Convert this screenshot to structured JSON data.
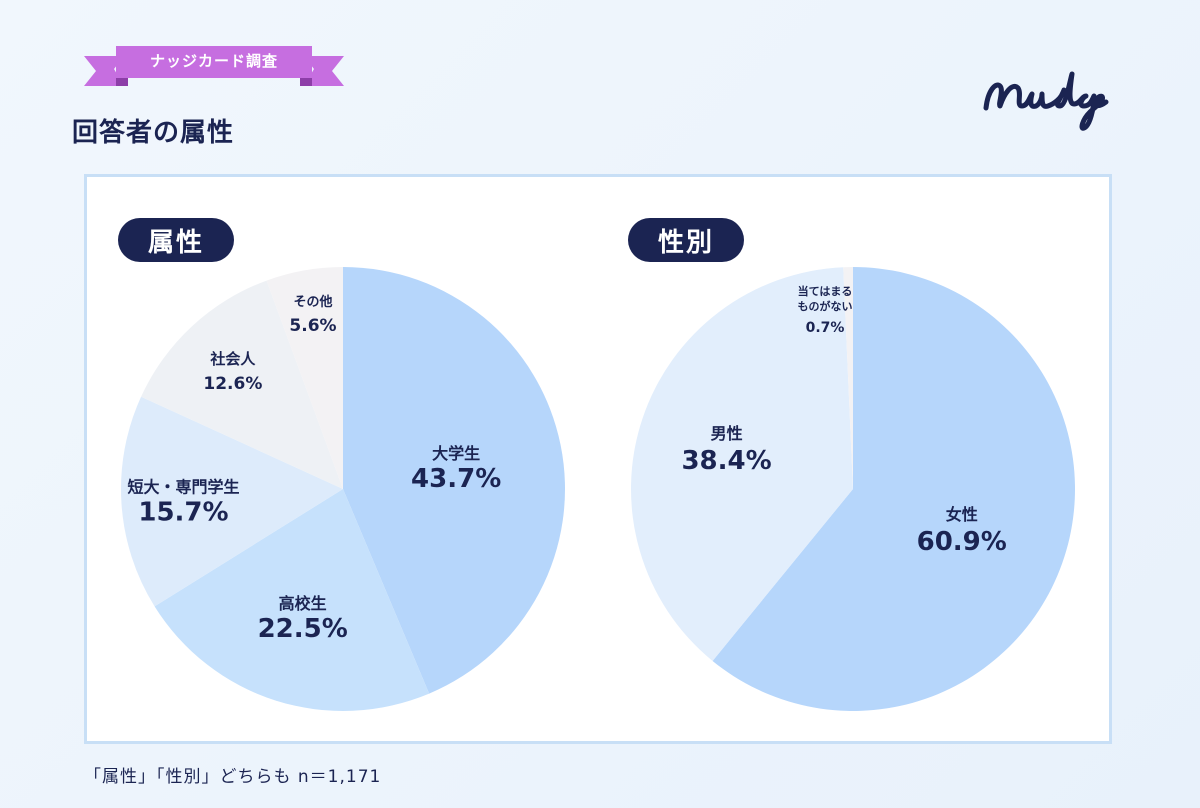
{
  "header": {
    "badge": "ナッジカード調査",
    "title": "回答者の属性",
    "logo": "Nudge"
  },
  "colors": {
    "navy": "#1b2452",
    "ribbon": "#c66ee0",
    "panel_border": "#c8dff6"
  },
  "chart_data": [
    {
      "type": "pie",
      "title": "属性",
      "start": "12 o'clock, clockwise",
      "slices": [
        {
          "label": "大学生",
          "value": 43.7,
          "display": "43.7%",
          "color": "#b6d6fb"
        },
        {
          "label": "高校生",
          "value": 22.5,
          "display": "22.5%",
          "color": "#c6e1fc"
        },
        {
          "label": "短大・専門学生",
          "value": 15.7,
          "display": "15.7%",
          "color": "#ddebfb"
        },
        {
          "label": "社会人",
          "value": 12.6,
          "display": "12.6%",
          "color": "#eef1f5"
        },
        {
          "label": "その他",
          "value": 5.6,
          "display": "5.6%",
          "color": "#f3f2f4"
        }
      ]
    },
    {
      "type": "pie",
      "title": "性別",
      "start": "12 o'clock, clockwise",
      "slices": [
        {
          "label": "女性",
          "value": 60.9,
          "display": "60.9%",
          "color": "#b6d6fb"
        },
        {
          "label": "男性",
          "value": 38.4,
          "display": "38.4%",
          "color": "#e2eefc"
        },
        {
          "label": "当てはまる\nものがない",
          "value": 0.7,
          "display": "0.7%",
          "color": "#f3f2f4"
        }
      ]
    }
  ],
  "footnote": "「属性」「性別」どちらも n＝1,171"
}
